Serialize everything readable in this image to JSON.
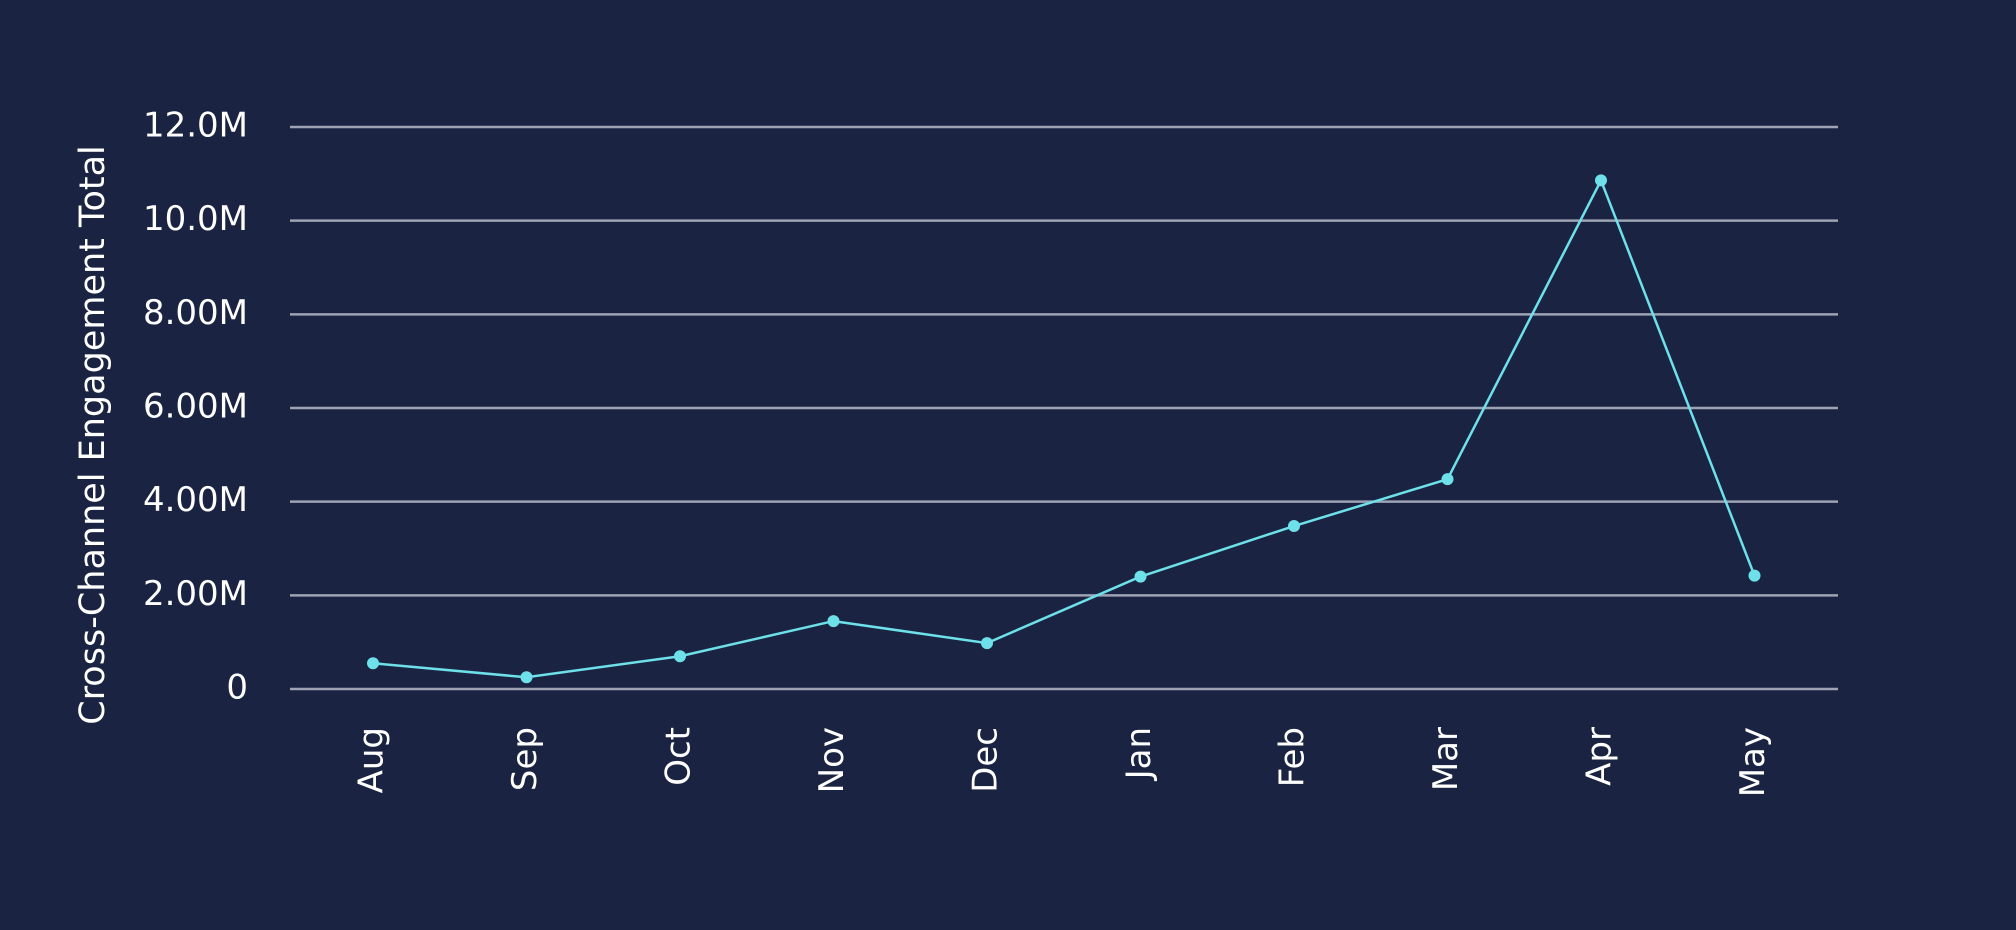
{
  "chart_data": {
    "type": "line",
    "categories": [
      "Aug",
      "Sep",
      "Oct",
      "Nov",
      "Dec",
      "Jan",
      "Feb",
      "Mar",
      "Apr",
      "May"
    ],
    "series": [
      {
        "values": [
          550000,
          250000,
          700000,
          1450000,
          980000,
          2400000,
          3480000,
          4480000,
          10860000,
          2420000
        ]
      }
    ],
    "title": "",
    "xlabel": "",
    "ylabel": "Cross-Channel Engagement  Total",
    "ylim": [
      0,
      12000000
    ],
    "yticks": [
      {
        "value": 0,
        "label": "0"
      },
      {
        "value": 2000000,
        "label": "2.00M"
      },
      {
        "value": 4000000,
        "label": "4.00M"
      },
      {
        "value": 6000000,
        "label": "6.00M"
      },
      {
        "value": 8000000,
        "label": "8.00M"
      },
      {
        "value": 10000000,
        "label": "10.0M"
      },
      {
        "value": 12000000,
        "label": "12.0M"
      }
    ],
    "grid": true,
    "legend": "none",
    "colors": {
      "background": "#1a2442",
      "line": "#6ee0ea",
      "grid": "#9ea3b4",
      "text": "#ffffff"
    }
  }
}
